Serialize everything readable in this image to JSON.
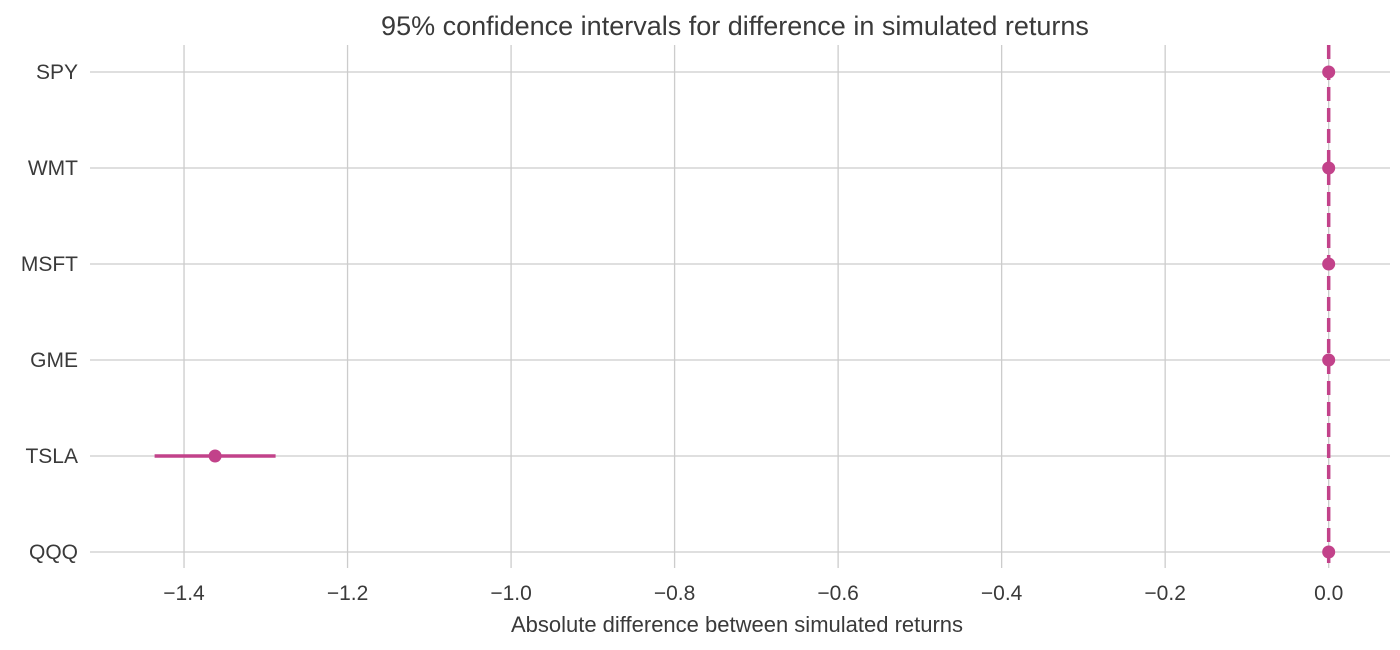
{
  "chart_data": {
    "type": "errorbar",
    "title": "95% confidence intervals for difference in simulated returns",
    "xlabel": "Absolute difference between simulated returns",
    "ylabel": "",
    "xlim": [
      -1.515,
      0.075
    ],
    "xticks": [
      -1.4,
      -1.2,
      -1.0,
      -0.8,
      -0.6,
      -0.4,
      -0.2,
      0.0
    ],
    "xtick_labels": [
      "−1.4",
      "−1.2",
      "−1.0",
      "−0.8",
      "−0.6",
      "−0.4",
      "−0.2",
      "0.0"
    ],
    "categories": [
      "SPY",
      "WMT",
      "MSFT",
      "GME",
      "TSLA",
      "QQQ"
    ],
    "points": [
      {
        "label": "SPY",
        "value": 0.0,
        "low": 0.0,
        "high": 0.0
      },
      {
        "label": "WMT",
        "value": 0.0,
        "low": 0.0,
        "high": 0.0
      },
      {
        "label": "MSFT",
        "value": 0.0,
        "low": 0.0,
        "high": 0.0
      },
      {
        "label": "GME",
        "value": 0.0,
        "low": 0.0,
        "high": 0.0
      },
      {
        "label": "TSLA",
        "value": -1.362,
        "low": -1.436,
        "high": -1.288
      },
      {
        "label": "QQQ",
        "value": 0.0,
        "low": 0.0,
        "high": 0.0
      }
    ],
    "reference_line": {
      "x": 0.0,
      "style": "dashed"
    },
    "grid": true,
    "colors": {
      "marker": "#c2428a",
      "reference": "#c2428a",
      "grid": "#cccccc"
    }
  }
}
